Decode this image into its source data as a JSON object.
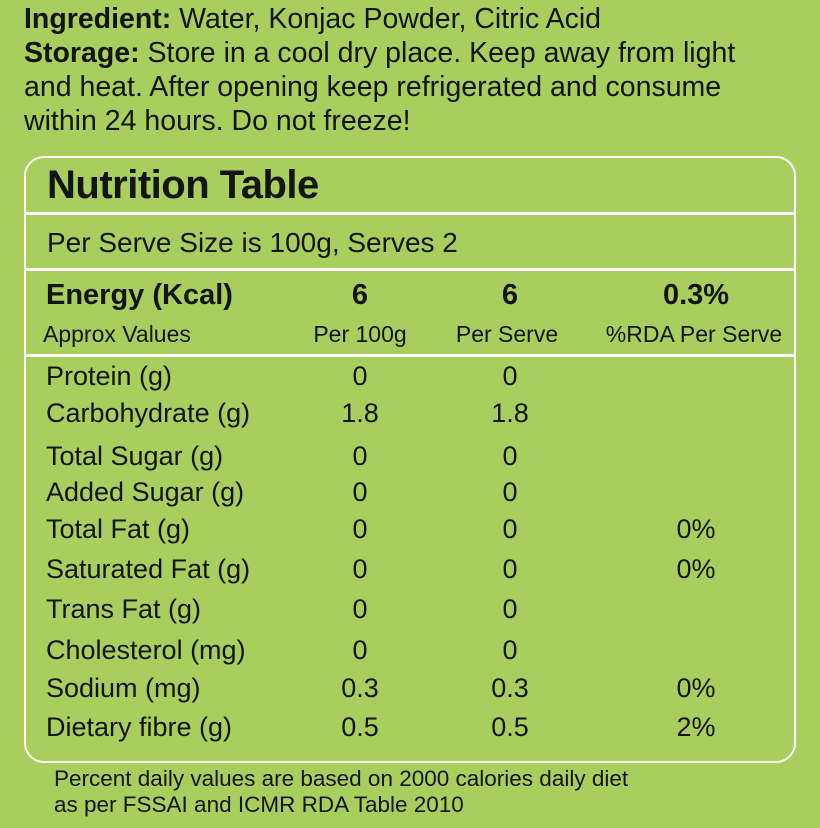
{
  "intro": {
    "ingredient_label": "Ingredient:",
    "ingredient_text": "Water, Konjac Powder, Citric Acid",
    "storage_label": "Storage:",
    "storage_line1": "Store in a cool dry place. Keep away from light",
    "storage_line2": "and heat. After opening keep refrigerated and consume",
    "storage_line3": "within 24 hours. Do not freeze!"
  },
  "table": {
    "title": "Nutrition Table",
    "serve_info": "Per Serve Size is 100g, Serves 2",
    "energy": {
      "label": "Energy (Kcal)",
      "per100": "6",
      "perServe": "6",
      "rda": "0.3%"
    },
    "headers": {
      "label": "Approx Values",
      "per100": "Per 100g",
      "perServe": "Per Serve",
      "rda": "%RDA Per Serve"
    },
    "rows": [
      {
        "label": "Protein (g)",
        "per100": "0",
        "perServe": "0",
        "rda": ""
      },
      {
        "label": "Carbohydrate (g)",
        "per100": "1.8",
        "perServe": "1.8",
        "rda": ""
      },
      {
        "label": "Total Sugar (g)",
        "per100": "0",
        "perServe": "0",
        "rda": ""
      },
      {
        "label": "Added Sugar (g)",
        "per100": "0",
        "perServe": "0",
        "rda": ""
      },
      {
        "label": "Total Fat (g)",
        "per100": "0",
        "perServe": "0",
        "rda": "0%"
      },
      {
        "label": "Saturated Fat (g)",
        "per100": "0",
        "perServe": "0",
        "rda": "0%"
      },
      {
        "label": "Trans Fat (g)",
        "per100": "0",
        "perServe": "0",
        "rda": ""
      },
      {
        "label": "Cholesterol (mg)",
        "per100": "0",
        "perServe": "0",
        "rda": ""
      },
      {
        "label": "Sodium (mg)",
        "per100": "0.3",
        "perServe": "0.3",
        "rda": "0%"
      },
      {
        "label": "Dietary fibre (g)",
        "per100": "0.5",
        "perServe": "0.5",
        "rda": "2%"
      }
    ]
  },
  "footer": {
    "line1": "Percent daily values are based on 2000 calories daily diet",
    "line2": "as per FSSAI and ICMR RDA Table 2010"
  }
}
